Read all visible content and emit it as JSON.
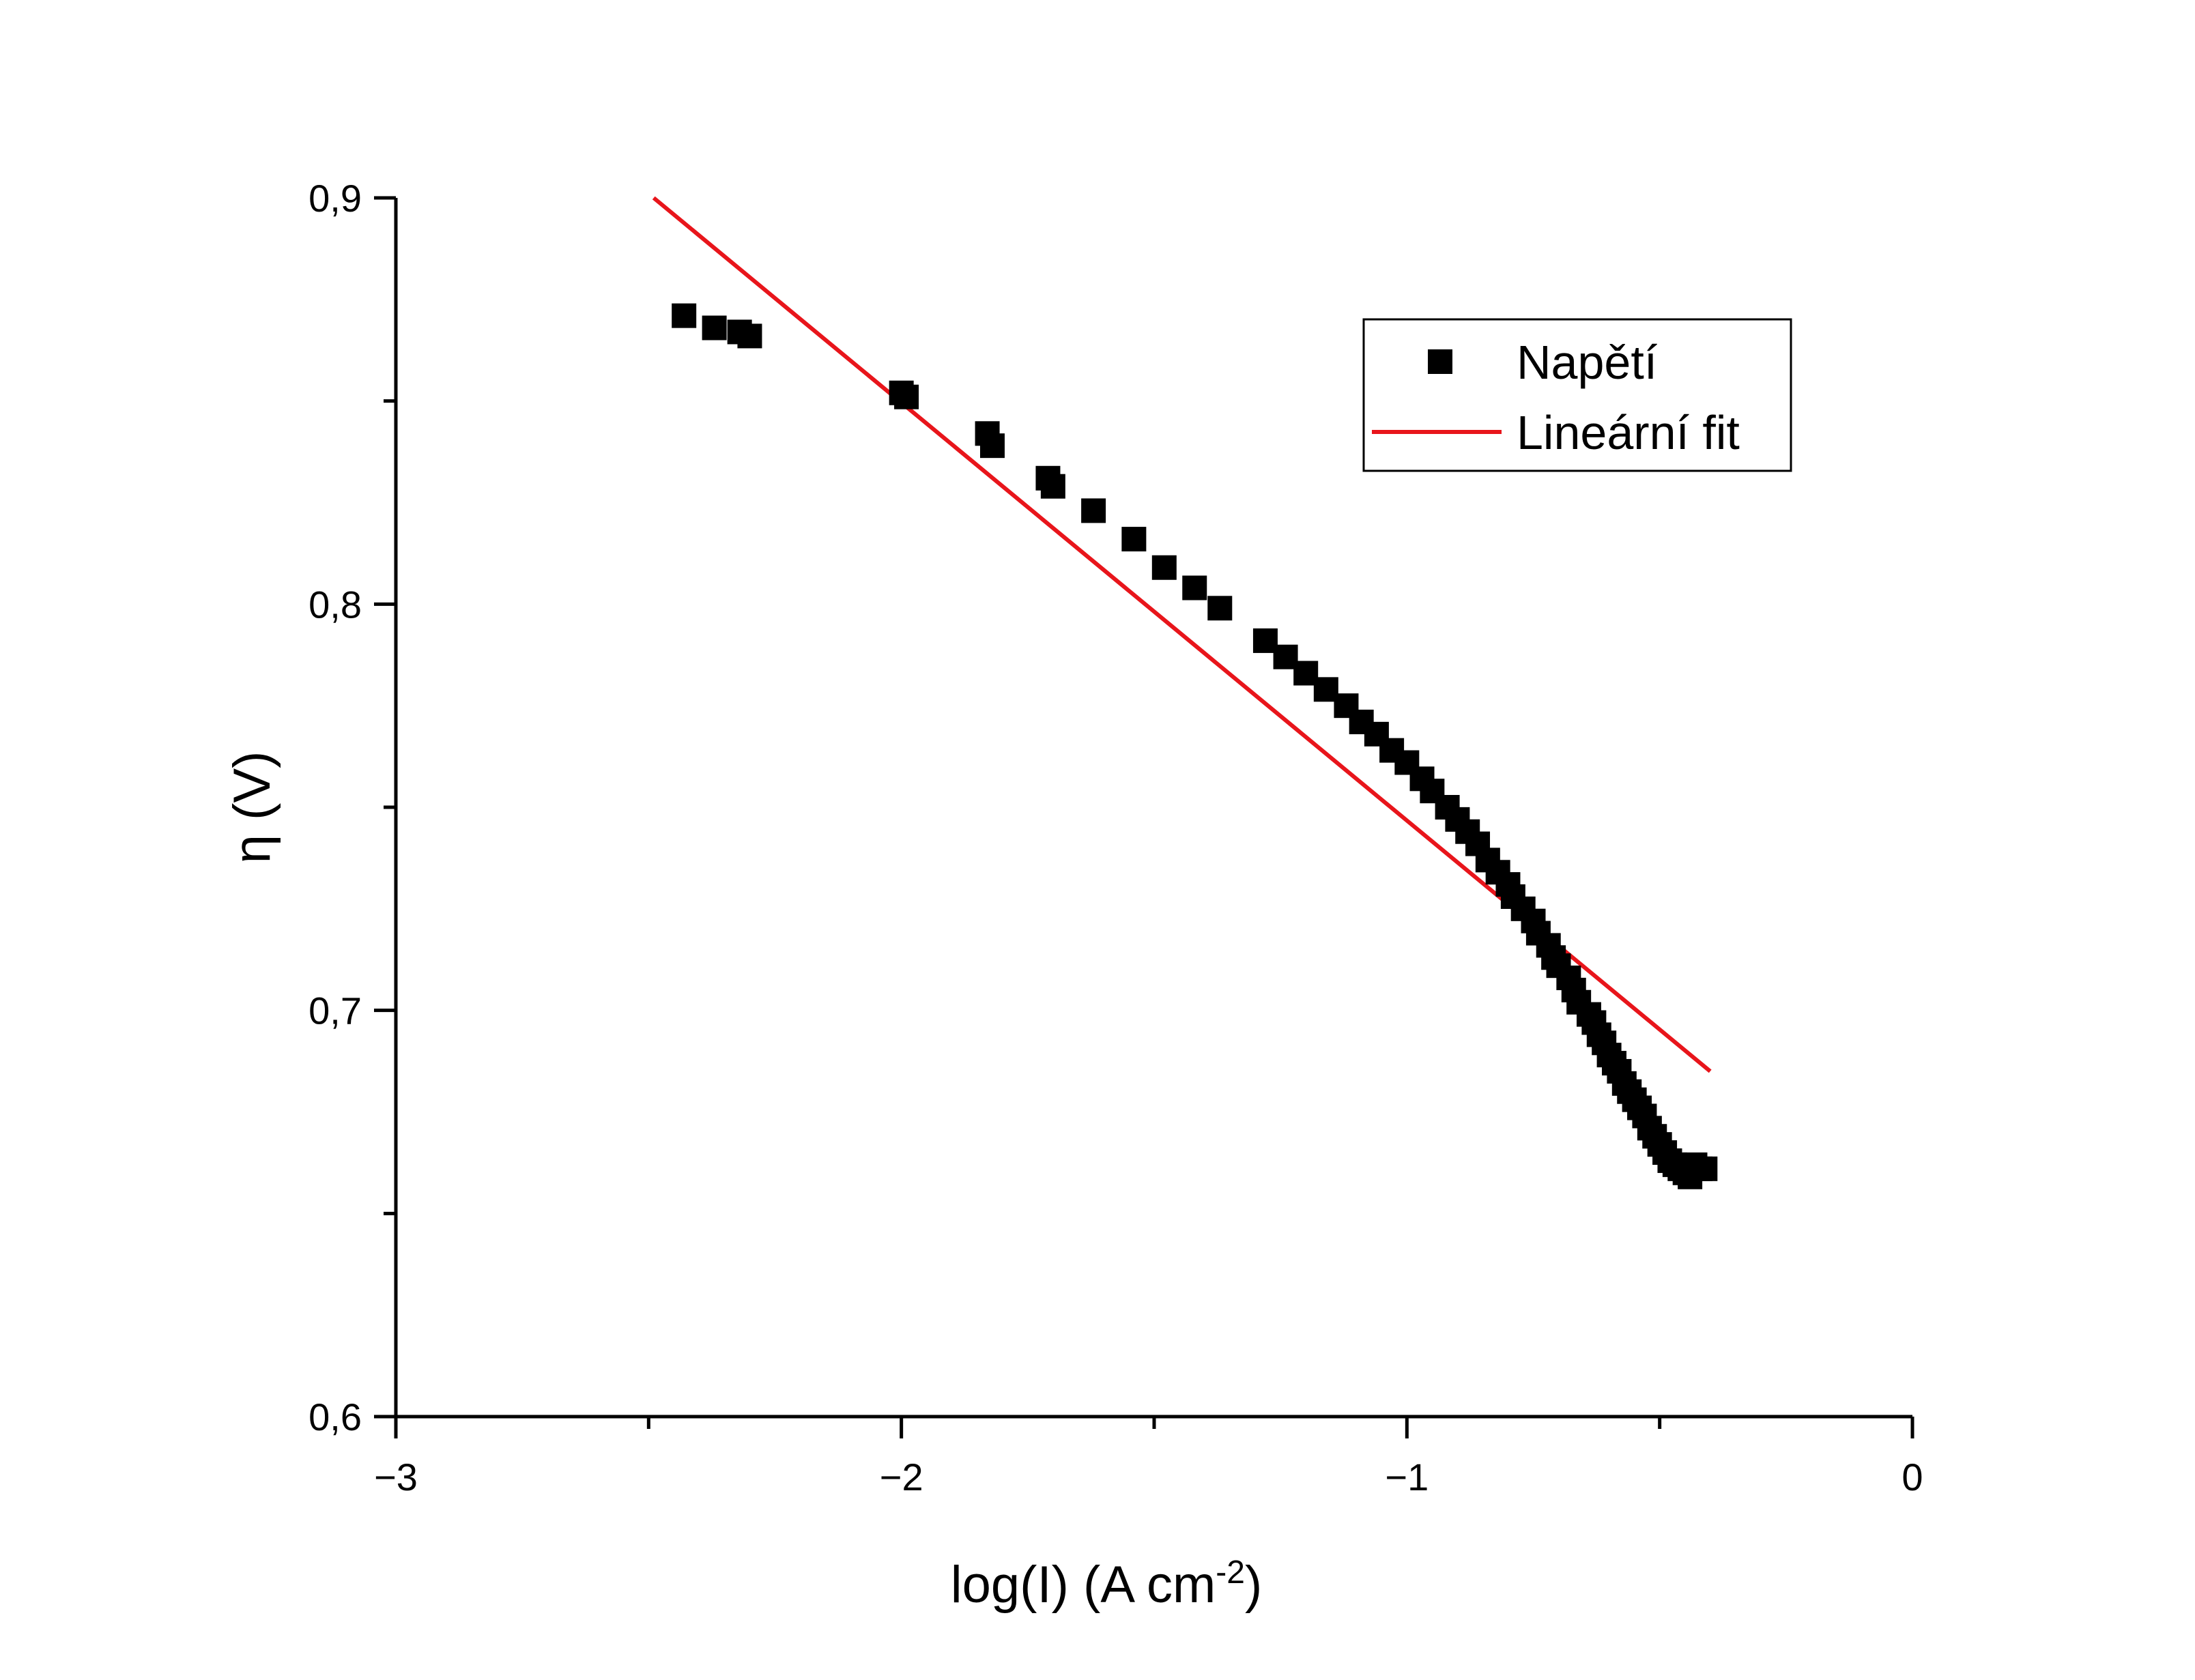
{
  "chart_data": {
    "type": "scatter",
    "xlabel": {
      "main": "log(I) (A cm",
      "sup": "-2",
      "tail": ")"
    },
    "ylabel": "η (V)",
    "xlim": [
      -3,
      0
    ],
    "ylim": [
      0.6,
      0.9
    ],
    "x_ticks": [
      {
        "value": -3,
        "label": "−3"
      },
      {
        "value": -2,
        "label": "−2"
      },
      {
        "value": -1,
        "label": "−1"
      },
      {
        "value": 0,
        "label": "0"
      }
    ],
    "x_minor_ticks": [
      -2.5,
      -1.5,
      -0.5
    ],
    "y_ticks": [
      {
        "value": 0.6,
        "label": "0,6"
      },
      {
        "value": 0.7,
        "label": "0,7"
      },
      {
        "value": 0.8,
        "label": "0,8"
      },
      {
        "value": 0.9,
        "label": "0,9"
      }
    ],
    "y_minor_ticks": [
      0.65,
      0.75,
      0.85
    ],
    "grid": false,
    "legend": {
      "position": "top-right",
      "entries": [
        {
          "label": "Napětí",
          "marker": "square"
        },
        {
          "label": "Lineární fit",
          "marker": "line"
        }
      ]
    },
    "colors": {
      "points": "#000000",
      "fit": "#e8151b",
      "axes": "#000000"
    },
    "series": [
      {
        "name": "Napětí",
        "kind": "scatter",
        "x": [
          -2.43,
          -2.37,
          -2.32,
          -2.3,
          -2.0,
          -1.99,
          -1.83,
          -1.82,
          -1.71,
          -1.7,
          -1.62,
          -1.54,
          -1.48,
          -1.42,
          -1.37,
          -1.28,
          -1.24,
          -1.2,
          -1.16,
          -1.12,
          -1.09,
          -1.06,
          -1.03,
          -1.0,
          -0.97,
          -0.95,
          -0.92,
          -0.9,
          -0.88,
          -0.86,
          -0.84,
          -0.82,
          -0.8,
          -0.79,
          -0.77,
          -0.75,
          -0.74,
          -0.72,
          -0.71,
          -0.7,
          -0.68,
          -0.67,
          -0.66,
          -0.64,
          -0.63,
          -0.62,
          -0.61,
          -0.6,
          -0.59,
          -0.58,
          -0.57,
          -0.56,
          -0.55,
          -0.54,
          -0.53,
          -0.52,
          -0.51,
          -0.5,
          -0.49,
          -0.48,
          -0.47,
          -0.46,
          -0.45,
          -0.44,
          -0.43,
          -0.42,
          -0.41
        ],
        "y": [
          0.871,
          0.868,
          0.867,
          0.866,
          0.852,
          0.851,
          0.842,
          0.839,
          0.831,
          0.829,
          0.823,
          0.816,
          0.809,
          0.804,
          0.799,
          0.791,
          0.787,
          0.783,
          0.779,
          0.775,
          0.771,
          0.768,
          0.764,
          0.761,
          0.757,
          0.754,
          0.75,
          0.747,
          0.744,
          0.741,
          0.737,
          0.734,
          0.731,
          0.728,
          0.725,
          0.722,
          0.719,
          0.716,
          0.713,
          0.711,
          0.708,
          0.705,
          0.702,
          0.699,
          0.697,
          0.694,
          0.692,
          0.689,
          0.687,
          0.685,
          0.682,
          0.68,
          0.678,
          0.676,
          0.674,
          0.671,
          0.669,
          0.667,
          0.665,
          0.663,
          0.662,
          0.661,
          0.66,
          0.659,
          0.662,
          0.661,
          0.661
        ]
      },
      {
        "name": "Lineární fit",
        "kind": "line",
        "x": [
          -2.49,
          -0.4
        ],
        "y": [
          0.9,
          0.685
        ]
      }
    ]
  }
}
